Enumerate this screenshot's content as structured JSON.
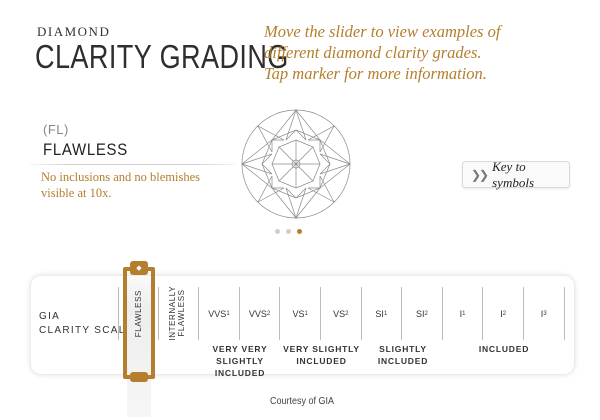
{
  "header": {
    "kicker": "DIAMOND",
    "title": "CLARITY GRADING",
    "instructions": [
      "Move the slider to view examples of",
      "different diamond clarity grades.",
      "Tap marker for more information."
    ]
  },
  "grade": {
    "code": "(FL)",
    "name": "FLAWLESS",
    "description": "No inclusions and no blemishes visible at 10x."
  },
  "key_button": {
    "label": "Key to symbols",
    "icon": "double-chevron-right-icon"
  },
  "carousel": {
    "count": 3,
    "active_index": 2
  },
  "scale": {
    "label_line1": "GIA",
    "label_line2": "CLARITY SCALE",
    "grades": [
      {
        "text": "FLAWLESS",
        "vertical": true
      },
      {
        "text": "INTERNALLY FLAWLESS",
        "vertical": true
      },
      {
        "base": "VVS",
        "sub": "1"
      },
      {
        "base": "VVS",
        "sub": "2"
      },
      {
        "base": "VS",
        "sub": "1"
      },
      {
        "base": "VS",
        "sub": "2"
      },
      {
        "base": "SI",
        "sub": "1"
      },
      {
        "base": "SI",
        "sub": "2"
      },
      {
        "base": "I",
        "sub": "1"
      },
      {
        "base": "I",
        "sub": "2"
      },
      {
        "base": "I",
        "sub": "3"
      }
    ],
    "groups": [
      {
        "line1": "VERY VERY",
        "line2": "SLIGHTLY INCLUDED"
      },
      {
        "line1": "VERY SLIGHTLY",
        "line2": "INCLUDED"
      },
      {
        "line1": "SLIGHTLY INCLUDED",
        "line2": ""
      },
      {
        "line1": "INCLUDED",
        "line2": ""
      }
    ],
    "selected_index": 0
  },
  "courtesy": "Courtesy of GIA",
  "colors": {
    "accent": "#b47e2c",
    "text": "#333333",
    "dot_inactive": "#cfcfcf"
  }
}
